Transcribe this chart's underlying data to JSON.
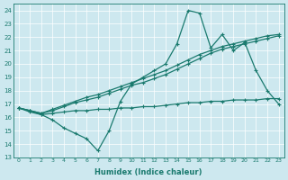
{
  "xlabel": "Humidex (Indice chaleur)",
  "ylabel": "",
  "xlim": [
    -0.5,
    23.5
  ],
  "ylim": [
    13,
    24.5
  ],
  "yticks": [
    13,
    14,
    15,
    16,
    17,
    18,
    19,
    20,
    21,
    22,
    23,
    24
  ],
  "xticks": [
    0,
    1,
    2,
    3,
    4,
    5,
    6,
    7,
    8,
    9,
    10,
    11,
    12,
    13,
    14,
    15,
    16,
    17,
    18,
    19,
    20,
    21,
    22,
    23
  ],
  "bg_color": "#cde8ef",
  "grid_color": "#ffffff",
  "line_color": "#1a7a6e",
  "line1_x": [
    0,
    1,
    2,
    3,
    4,
    5,
    6,
    7,
    8,
    9,
    10,
    11,
    12,
    13,
    14,
    15,
    16,
    17,
    18,
    19,
    20,
    21,
    22,
    23
  ],
  "line1_y": [
    16.7,
    16.5,
    16.2,
    15.8,
    15.2,
    14.8,
    14.4,
    13.5,
    15.0,
    17.2,
    18.5,
    19.0,
    19.5,
    20.0,
    21.5,
    24.0,
    23.8,
    21.2,
    22.2,
    21.0,
    21.6,
    19.5,
    18.0,
    17.0
  ],
  "line2_x": [
    0,
    1,
    2,
    3,
    4,
    5,
    6,
    7,
    8,
    9,
    10,
    11,
    12,
    13,
    14,
    15,
    16,
    17,
    18,
    19,
    20,
    21,
    22,
    23
  ],
  "line2_y": [
    16.7,
    16.4,
    16.2,
    16.3,
    16.4,
    16.5,
    16.5,
    16.6,
    16.6,
    16.7,
    16.7,
    16.8,
    16.8,
    16.9,
    17.0,
    17.1,
    17.1,
    17.2,
    17.2,
    17.3,
    17.3,
    17.3,
    17.4,
    17.4
  ],
  "line3_x": [
    0,
    1,
    2,
    3,
    4,
    5,
    6,
    7,
    8,
    9,
    10,
    11,
    12,
    13,
    14,
    15,
    16,
    17,
    18,
    19,
    20,
    21,
    22,
    23
  ],
  "line3_y": [
    16.7,
    16.5,
    16.3,
    16.5,
    16.8,
    17.1,
    17.3,
    17.5,
    17.8,
    18.1,
    18.4,
    18.6,
    18.9,
    19.2,
    19.6,
    20.0,
    20.4,
    20.8,
    21.1,
    21.3,
    21.5,
    21.7,
    21.9,
    22.1
  ],
  "line4_x": [
    0,
    1,
    2,
    3,
    4,
    5,
    6,
    7,
    8,
    9,
    10,
    11,
    12,
    13,
    14,
    15,
    16,
    17,
    18,
    19,
    20,
    21,
    22,
    23
  ],
  "line4_y": [
    16.7,
    16.5,
    16.3,
    16.6,
    16.9,
    17.2,
    17.5,
    17.7,
    18.0,
    18.3,
    18.6,
    18.9,
    19.2,
    19.5,
    19.9,
    20.3,
    20.7,
    21.0,
    21.3,
    21.5,
    21.7,
    21.9,
    22.1,
    22.2
  ]
}
